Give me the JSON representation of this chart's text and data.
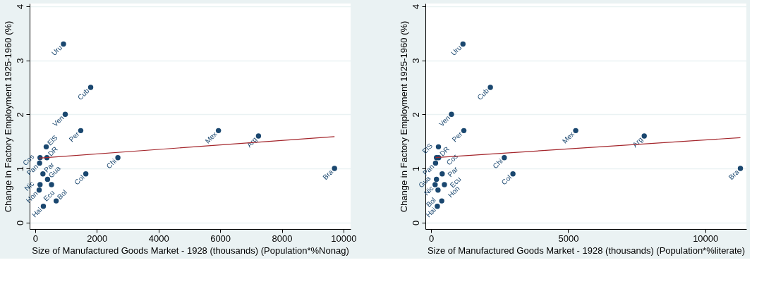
{
  "chart_data": [
    {
      "type": "scatter",
      "xlabel": "Size of Manufactured Goods Market - 1928 (thousands) (Population*%Nonag)",
      "ylabel": "Change in Factory Employment 1925-1960 (%)",
      "xlim": [
        -180,
        10230
      ],
      "ylim": [
        -0.12,
        4.05
      ],
      "xticks": [
        0,
        2000,
        4000,
        6000,
        8000,
        10000
      ],
      "yticks": [
        0,
        1,
        2,
        3,
        4
      ],
      "grid": "y",
      "marker": "circle",
      "series": [
        {
          "color": "#1a476f",
          "x": [
            918,
            1800,
            975,
            1477,
            5944,
            7242,
            9708,
            2682,
            1642,
            358,
            158,
            380,
            143,
            251,
            401,
            158,
            530,
            129,
            265,
            681
          ],
          "values": [
            3.3,
            2.5,
            2.0,
            1.7,
            1.7,
            1.6,
            1.0,
            1.2,
            0.9,
            1.4,
            1.2,
            1.2,
            1.1,
            0.9,
            0.8,
            0.7,
            0.7,
            0.6,
            0.3,
            0.4
          ],
          "value_labels": [
            "Uru",
            "Cub",
            "Ven",
            "Per",
            "Mex",
            "Arg",
            "Bra",
            "Chi",
            "Col",
            "ElS",
            "Cos",
            "DR",
            "Pan",
            "Par",
            "Gua",
            "Nic",
            "Ecu",
            "Hon",
            "Hai",
            "Bol"
          ]
        },
        {
          "type": "line",
          "marker": "none",
          "color": "#a4262c",
          "x": [
            129,
            9708
          ],
          "values": [
            1.19,
            1.59
          ]
        }
      ]
    },
    {
      "type": "scatter",
      "xlabel": "Size of Manufactured Goods Market - 1928 (thousands) (Population*%literate)",
      "ylabel": "Change in Factory Employment 1925-1960 (%)",
      "xlim": [
        -210,
        11500
      ],
      "ylim": [
        -0.12,
        4.05
      ],
      "xticks": [
        0,
        5000,
        10000
      ],
      "yticks": [
        0,
        1,
        2,
        3,
        4
      ],
      "grid": "y",
      "marker": "circle",
      "series": [
        {
          "color": "#1a476f",
          "x": [
            1161,
            2161,
            742,
            1193,
            5274,
            7774,
            11282,
            2669,
            2984,
            266,
            194,
            274,
            161,
            403,
            194,
            145,
            484,
            250,
            226,
            387
          ],
          "values": [
            3.3,
            2.5,
            2.0,
            1.7,
            1.7,
            1.6,
            1.0,
            1.2,
            0.9,
            1.4,
            1.2,
            1.2,
            1.1,
            0.9,
            0.8,
            0.7,
            0.7,
            0.6,
            0.3,
            0.4
          ],
          "value_labels": [
            "Uru",
            "Cub",
            "Ven",
            "Per",
            "Mex",
            "Arg",
            "Bra",
            "Chi",
            "Col",
            "ElS",
            "Cos",
            "DR",
            "Pan",
            "Par",
            "Gua",
            "Nic",
            "Ecu",
            "Hon",
            "Hai",
            "Bol"
          ]
        },
        {
          "type": "line",
          "marker": "none",
          "color": "#a4262c",
          "x": [
            161,
            11282
          ],
          "values": [
            1.2,
            1.57
          ]
        }
      ]
    }
  ]
}
